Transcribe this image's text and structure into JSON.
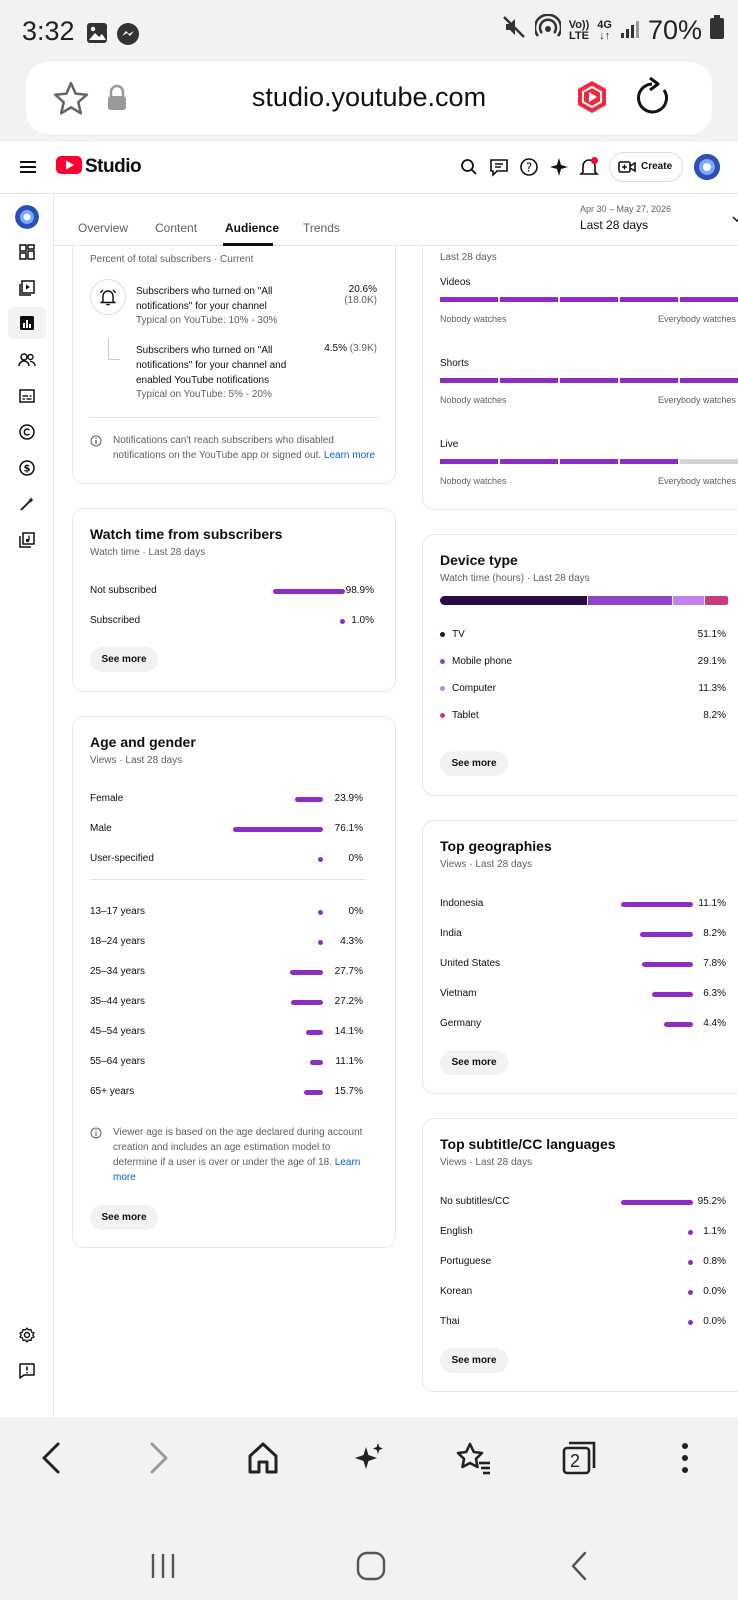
{
  "status_bar": {
    "time": "3:32",
    "network": "LTE",
    "net_top": "Vo))",
    "gen": "4G",
    "battery": "70%"
  },
  "browser": {
    "url": "studio.youtube.com"
  },
  "header": {
    "logo_text": "Studio",
    "create_label": "Create"
  },
  "tabs": [
    "Overview",
    "Content",
    "Audience",
    "Trends"
  ],
  "date_range": {
    "range": "Apr 30 – May 27, 2026",
    "label": "Last 28 days"
  },
  "notifications_card": {
    "subtitle": "Percent of total subscribers · Current",
    "row1_text": "Subscribers who turned on \"All notifications\" for your channel",
    "row1_typical": "Typical on YouTube: 10% - 30%",
    "row1_value": "20.6%",
    "row1_count": "(18.0K)",
    "row2_text": "Subscribers who turned on \"All notifications\" for your channel and enabled YouTube notifications",
    "row2_typical": "Typical on YouTube: 5% - 20%",
    "row2_value": "4.5%",
    "row2_count": "(3.9K)",
    "note": "Notifications can't reach subscribers who disabled notifications on the YouTube app or signed out.",
    "learn_more": "Learn more"
  },
  "watch_time_subs": {
    "title": "Watch time from subscribers",
    "subtitle": "Watch time · Last 28 days",
    "rows": [
      {
        "label": "Not subscribed",
        "value": "98.9%",
        "pct": 98.9
      },
      {
        "label": "Subscribed",
        "value": "1.0%",
        "pct": 1.0
      }
    ],
    "see_more": "See more"
  },
  "age_gender": {
    "title": "Age and gender",
    "subtitle": "Views · Last 28 days",
    "gender": [
      {
        "label": "Female",
        "value": "23.9%",
        "pct": 23.9
      },
      {
        "label": "Male",
        "value": "76.1%",
        "pct": 76.1
      },
      {
        "label": "User-specified",
        "value": "0%",
        "pct": 0
      }
    ],
    "ages": [
      {
        "label": "13–17 years",
        "value": "0%",
        "pct": 0
      },
      {
        "label": "18–24 years",
        "value": "4.3%",
        "pct": 4.3
      },
      {
        "label": "25–34 years",
        "value": "27.7%",
        "pct": 27.7
      },
      {
        "label": "35–44 years",
        "value": "27.2%",
        "pct": 27.2
      },
      {
        "label": "45–54 years",
        "value": "14.1%",
        "pct": 14.1
      },
      {
        "label": "55–64 years",
        "value": "11.1%",
        "pct": 11.1
      },
      {
        "label": "65+ years",
        "value": "15.7%",
        "pct": 15.7
      }
    ],
    "note": "Viewer age is based on the age declared during account creation and includes an age estimation model to determine if a user is over or under the age of 18.",
    "learn_more": "Learn more",
    "see_more": "See more"
  },
  "watchers_card": {
    "subtitle": "Last 28 days",
    "rows": [
      {
        "label": "Videos",
        "filled_segments": 5
      },
      {
        "label": "Shorts",
        "filled_segments": 5
      },
      {
        "label": "Live",
        "filled_segments": 4
      }
    ],
    "total_segments": 5,
    "min_label": "Nobody watches",
    "max_label": "Everybody watches"
  },
  "device_type": {
    "title": "Device type",
    "subtitle": "Watch time (hours) · Last 28 days",
    "rows": [
      {
        "label": "TV",
        "value": "51.1%",
        "pct": 51.1,
        "color": "#2b0a45"
      },
      {
        "label": "Mobile phone",
        "value": "29.1%",
        "pct": 29.1,
        "color": "#8e44c9"
      },
      {
        "label": "Computer",
        "value": "11.3%",
        "pct": 11.3,
        "color": "#c47ef0"
      },
      {
        "label": "Tablet",
        "value": "8.2%",
        "pct": 8.2,
        "color": "#c93b7c"
      }
    ],
    "see_more": "See more"
  },
  "top_geographies": {
    "title": "Top geographies",
    "subtitle": "Views · Last 28 days",
    "rows": [
      {
        "label": "Indonesia",
        "value": "11.1%",
        "pct": 11.1
      },
      {
        "label": "India",
        "value": "8.2%",
        "pct": 8.2
      },
      {
        "label": "United States",
        "value": "7.8%",
        "pct": 7.8
      },
      {
        "label": "Vietnam",
        "value": "6.3%",
        "pct": 6.3
      },
      {
        "label": "Germany",
        "value": "4.4%",
        "pct": 4.4
      }
    ],
    "see_more": "See more"
  },
  "top_subtitles": {
    "title": "Top subtitle/CC languages",
    "subtitle": "Views · Last 28 days",
    "rows": [
      {
        "label": "No subtitles/CC",
        "value": "95.2%",
        "pct": 95.2
      },
      {
        "label": "English",
        "value": "1.1%",
        "pct": 1.1
      },
      {
        "label": "Portuguese",
        "value": "0.8%",
        "pct": 0.8
      },
      {
        "label": "Korean",
        "value": "0.0%",
        "pct": 0.0
      },
      {
        "label": "Thai",
        "value": "0.0%",
        "pct": 0.0
      }
    ],
    "see_more": "See more"
  },
  "bottom_nav": {
    "tabs_count": "2"
  },
  "colors": {
    "accent": "#8e2dc5",
    "brand_red": "#ff0033",
    "link": "#065fd4"
  }
}
